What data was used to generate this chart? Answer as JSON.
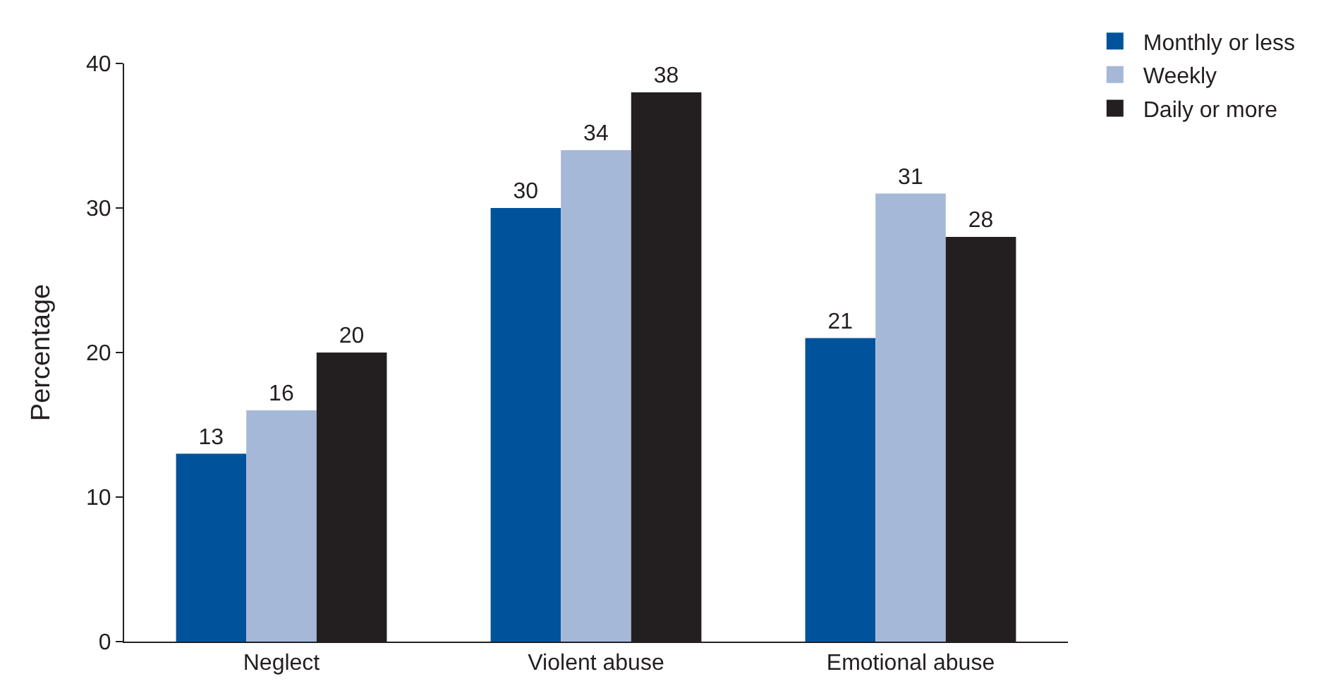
{
  "chart_data": {
    "type": "bar",
    "ylabel": "Percentage",
    "categories": [
      "Neglect",
      "Violent abuse",
      "Emotional abuse"
    ],
    "series": [
      {
        "name": "Monthly or less",
        "color": "#00539b",
        "values": [
          13,
          30,
          21
        ]
      },
      {
        "name": "Weekly",
        "color": "#a5b8d8",
        "values": [
          16,
          34,
          31
        ]
      },
      {
        "name": "Daily or more",
        "color": "#231f20",
        "values": [
          20,
          38,
          28
        ]
      }
    ],
    "ylim": [
      0,
      40
    ],
    "yticks": [
      0,
      10,
      20,
      30,
      40
    ],
    "grid": false,
    "legend": "top right",
    "data_labels": true
  }
}
